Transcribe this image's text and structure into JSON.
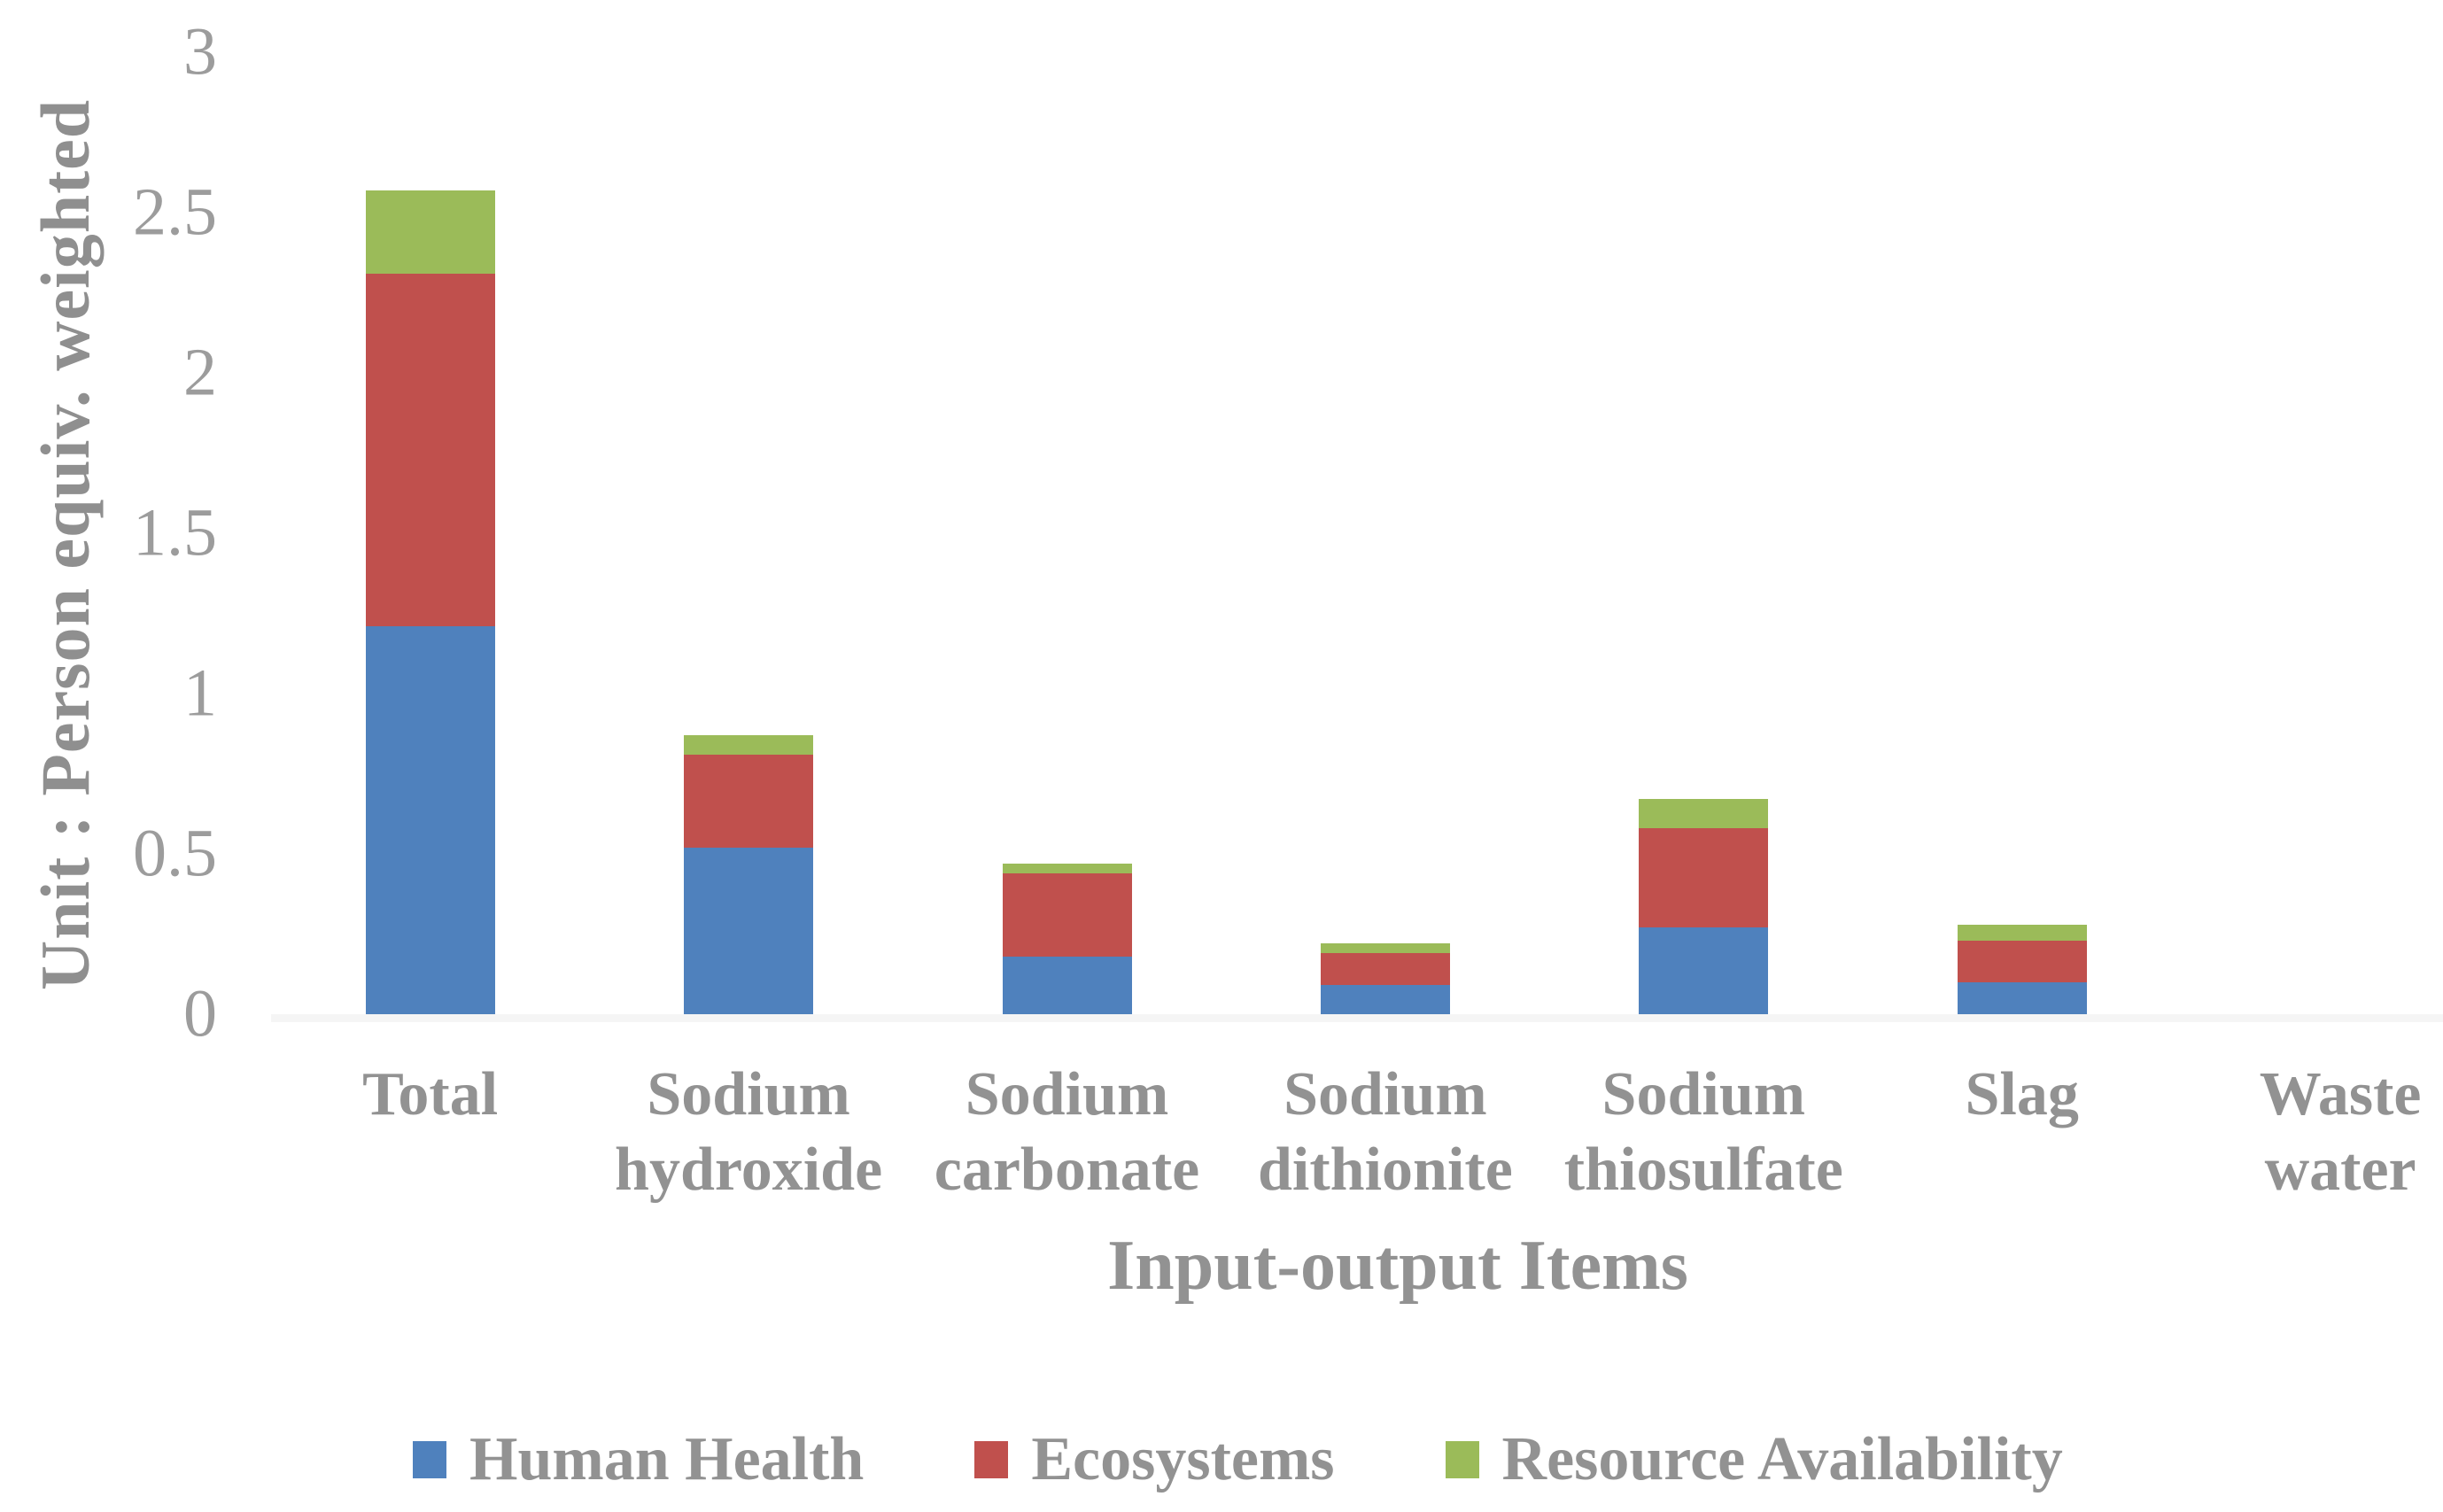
{
  "chart_data": {
    "type": "bar",
    "stacked": true,
    "title": "",
    "xlabel": "Input-output Items",
    "ylabel": "Unit : Person equiv. weighted",
    "categories": [
      "Total",
      "Sodium hydroxide",
      "Sodium carbonate",
      "Sodium dithionite",
      "Sodium thiosulfate",
      "Slag",
      "Waste water"
    ],
    "series": [
      {
        "name": "Human Health",
        "color": "#4F81BD",
        "values": [
          1.21,
          0.52,
          0.18,
          0.09,
          0.27,
          0.1,
          0
        ]
      },
      {
        "name": "Ecosystems",
        "color": "#C0504D",
        "values": [
          1.1,
          0.29,
          0.26,
          0.1,
          0.31,
          0.13,
          0
        ]
      },
      {
        "name": "Resource Availability",
        "color": "#9BBB59",
        "values": [
          0.26,
          0.06,
          0.03,
          0.03,
          0.09,
          0.05,
          0
        ]
      }
    ],
    "ylim": [
      0,
      3
    ],
    "yticks": [
      0,
      0.5,
      1,
      1.5,
      2,
      2.5,
      3
    ],
    "ytick_labels": [
      "0",
      "0.5",
      "1",
      "1.5",
      "2",
      "2.5",
      "3"
    ],
    "grid": false,
    "legend_position": "bottom",
    "text_color": "#929292",
    "tick_color": "#9c9c9c",
    "axis_line_color": "#f5f5f5"
  }
}
